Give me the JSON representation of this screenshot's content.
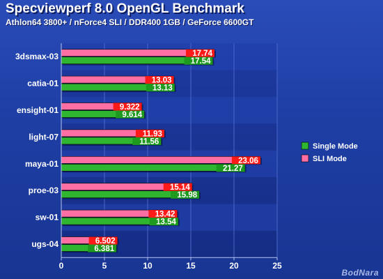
{
  "title": "Specviewperf 8.0 OpenGL Benchmark",
  "subtitle": "Athlon64 3800+ / nForce4 SLI / DDR400 1GB / GeForce 6600GT",
  "watermark": "BodNara",
  "chart_data": {
    "type": "bar",
    "orientation": "horizontal",
    "categories": [
      "3dsmax-03",
      "catia-01",
      "ensight-01",
      "light-07",
      "maya-01",
      "proe-03",
      "sw-01",
      "ugs-04"
    ],
    "series": [
      {
        "name": "SLI Mode",
        "color": "#ff6fa3",
        "label_bg": "#ff1a1a",
        "values": [
          17.74,
          13.03,
          9.322,
          11.93,
          23.06,
          15.14,
          13.42,
          6.502
        ],
        "labels": [
          "17.74",
          "13.03",
          "9.322",
          "11.93",
          "23.06",
          "15.14",
          "13.42",
          "6.502"
        ]
      },
      {
        "name": "Single Mode",
        "color": "#2fb52f",
        "label_bg": "#1e9a1e",
        "values": [
          17.54,
          13.13,
          9.614,
          11.56,
          21.27,
          15.98,
          13.54,
          6.381
        ],
        "labels": [
          "17.54",
          "13.13",
          "9.614",
          "11.56",
          "21.27",
          "15.98",
          "13.54",
          "6.381"
        ]
      }
    ],
    "legend_order": [
      "Single Mode",
      "SLI Mode"
    ],
    "xlim": [
      0,
      25
    ],
    "xticks": [
      "0",
      "5",
      "10",
      "15",
      "20",
      "25"
    ],
    "grid": true,
    "legend_position": "right"
  }
}
